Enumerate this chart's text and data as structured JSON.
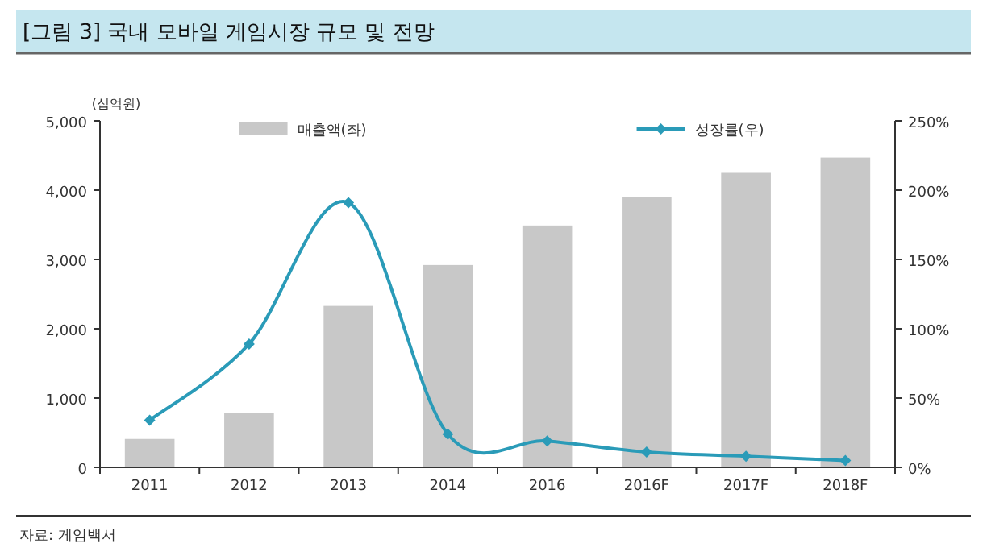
{
  "chart_data": {
    "type": "bar",
    "title": "[그림 3] 국내 모바일 게임시장 규모 및 전망",
    "ylabel": "(십억원)",
    "categories": [
      "2011",
      "2012",
      "2013",
      "2014",
      "2016",
      "2016F",
      "2017F",
      "2018F"
    ],
    "series": [
      {
        "name": "매출액(좌)",
        "color": "#c8c8c8",
        "values": [
          410,
          790,
          2330,
          2920,
          3490,
          3900,
          4250,
          4470
        ]
      },
      {
        "name": "성장률(우)",
        "type": "line",
        "axis": "y2",
        "color": "#2a9bb8",
        "marker": "diamond",
        "line_style": "solid",
        "values": [
          34,
          89,
          191,
          24,
          19,
          11,
          8,
          5
        ]
      }
    ],
    "ylim": [
      0,
      5000
    ],
    "yticks": [
      {
        "value": 0,
        "label": "0"
      },
      {
        "value": 1000,
        "label": "1,000"
      },
      {
        "value": 2000,
        "label": "2,000"
      },
      {
        "value": 3000,
        "label": "3,000"
      },
      {
        "value": 4000,
        "label": "4,000"
      },
      {
        "value": 5000,
        "label": "5,000"
      }
    ],
    "y2lim": [
      0,
      250
    ],
    "y2ticks": [
      {
        "value": 0,
        "label": "0%"
      },
      {
        "value": 50,
        "label": "50%"
      },
      {
        "value": 100,
        "label": "100%"
      },
      {
        "value": 150,
        "label": "150%"
      },
      {
        "value": 200,
        "label": "200%"
      },
      {
        "value": 250,
        "label": "250%"
      }
    ],
    "legend": "top",
    "annotations": [
      "자료: 게임백서"
    ]
  }
}
